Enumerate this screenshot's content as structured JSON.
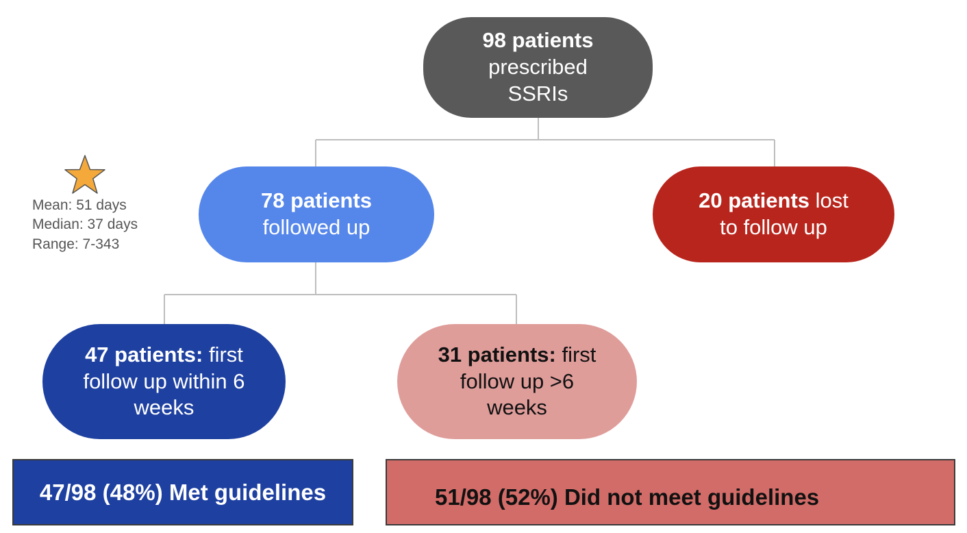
{
  "diagram": {
    "root": {
      "count": "98 patients",
      "label_line1": "prescribed",
      "label_line2": "SSRIs"
    },
    "followed_up": {
      "count": "78 patients",
      "label": "followed up"
    },
    "lost": {
      "count": "20 patients",
      "label_suffix": " lost",
      "label_line2": "to follow up"
    },
    "within_6_weeks": {
      "count": "47 patients:",
      "label_suffix": " first",
      "label_line2": "follow up within 6",
      "label_line3": "weeks"
    },
    "over_6_weeks": {
      "count": "31 patients:",
      "label_suffix": " first",
      "label_line2": "follow up >6",
      "label_line3": "weeks"
    },
    "stats": {
      "mean": "Mean: 51 days",
      "median": "Median: 37 days",
      "range": "Range: 7-343"
    },
    "results": {
      "met": "47/98 (48%) Met guidelines",
      "not_met": "51/98 (52%) Did not meet guidelines"
    }
  },
  "colors": {
    "root": "#595959",
    "followed_up": "#5586ea",
    "lost": "#b8251d",
    "within_6_weeks": "#1e40a0",
    "over_6_weeks": "#df9d9a",
    "met_box": "#1e40a0",
    "not_met_box": "#d26c68",
    "star": "#f4a93a",
    "connector": "#bdbdbd"
  },
  "icons": {
    "star": "star-icon"
  }
}
